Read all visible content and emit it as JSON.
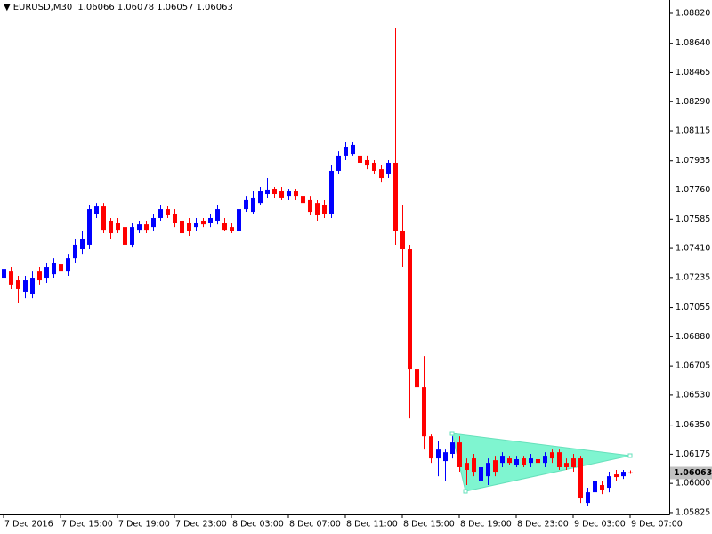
{
  "chart_data": {
    "type": "candlestick",
    "title": "EURUSD,M30",
    "x": [
      "7 Dec 2016",
      null,
      null,
      null,
      null,
      null,
      null,
      null,
      "7 Dec 15:00",
      null,
      null,
      null,
      null,
      null,
      null,
      null,
      "7 Dec 19:00",
      null,
      null,
      null,
      null,
      null,
      null,
      null,
      "7 Dec 23:00",
      null,
      null,
      null,
      null,
      null,
      null,
      null,
      "8 Dec 03:00",
      null,
      null,
      null,
      null,
      null,
      null,
      null,
      "8 Dec 07:00",
      null,
      null,
      null,
      null,
      null,
      null,
      null,
      "8 Dec 11:00",
      null,
      null,
      null,
      null,
      null,
      null,
      null,
      "8 Dec 15:00",
      null,
      null,
      null,
      null,
      null,
      null,
      null,
      "8 Dec 19:00",
      null,
      null,
      null,
      null,
      null,
      null,
      null,
      "8 Dec 23:00",
      null,
      null,
      null,
      null,
      null,
      null,
      null,
      "9 Dec 03:00",
      null,
      null,
      null,
      null,
      null,
      null,
      null,
      "9 Dec 07:00"
    ],
    "open": [
      1.07234,
      1.07271,
      1.07218,
      1.07149,
      1.07138,
      1.07271,
      1.07234,
      1.07255,
      1.07314,
      1.07271,
      1.07351,
      1.07405,
      1.07432,
      1.07618,
      1.07661,
      1.07576,
      1.07565,
      1.07538,
      1.07432,
      1.07522,
      1.07554,
      1.07538,
      1.07592,
      1.07645,
      1.07618,
      1.07576,
      1.07565,
      1.07538,
      1.07576,
      1.07565,
      1.07576,
      1.07565,
      1.07538,
      1.07512,
      1.07645,
      1.07629,
      1.07682,
      1.07736,
      1.07768,
      1.07752,
      1.07725,
      1.07752,
      1.07725,
      1.07699,
      1.07682,
      1.07672,
      1.07618,
      1.07875,
      1.07966,
      1.07976,
      1.07966,
      1.07939,
      1.07923,
      1.07885,
      1.07859,
      1.07923,
      1.07512,
      1.07405,
      1.06684,
      1.06577,
      1.06283,
      1.0615,
      1.06134,
      1.06177,
      1.06246,
      1.06123,
      1.0615,
      1.06016,
      1.06043,
      1.06139,
      1.06123,
      1.0615,
      1.06113,
      1.0615,
      1.06123,
      1.06145,
      1.06123,
      1.06187,
      1.06187,
      1.06123,
      1.0615,
      1.0615,
      1.05883,
      1.05947,
      1.0599,
      1.05974,
      1.06054,
      1.06043,
      1.06066
    ],
    "high": [
      1.07314,
      1.07298,
      1.07245,
      1.07245,
      1.07271,
      1.07298,
      1.07325,
      1.07351,
      1.07351,
      1.07378,
      1.07469,
      1.07512,
      1.07672,
      1.07682,
      1.07682,
      1.07592,
      1.07592,
      1.07565,
      1.07565,
      1.07576,
      1.07576,
      1.07618,
      1.07672,
      1.07661,
      1.07645,
      1.07592,
      1.07592,
      1.07592,
      1.07592,
      1.07618,
      1.07672,
      1.07592,
      1.07565,
      1.07672,
      1.07725,
      1.07752,
      1.07779,
      1.07832,
      1.07779,
      1.07779,
      1.07768,
      1.07768,
      1.07752,
      1.07725,
      1.07699,
      1.07699,
      1.07912,
      1.07992,
      1.08046,
      1.08046,
      1.08019,
      1.07966,
      1.07939,
      1.07912,
      1.07939,
      1.08729,
      1.07672,
      1.07432,
      1.06764,
      1.06764,
      1.06294,
      1.06257,
      1.06203,
      1.06283,
      1.06283,
      1.0615,
      1.06177,
      1.06166,
      1.0615,
      1.06166,
      1.06187,
      1.06166,
      1.06166,
      1.06166,
      1.06177,
      1.06166,
      1.06187,
      1.06203,
      1.06203,
      1.0615,
      1.06177,
      1.06166,
      1.05974,
      1.06043,
      1.06016,
      1.0607,
      1.06081,
      1.06081,
      1.06078
    ],
    "low": [
      1.07202,
      1.07165,
      1.07084,
      1.07111,
      1.07111,
      1.07192,
      1.07202,
      1.07234,
      1.07245,
      1.07245,
      1.07325,
      1.07378,
      1.07405,
      1.07592,
      1.07501,
      1.07469,
      1.07501,
      1.07405,
      1.07415,
      1.07501,
      1.07501,
      1.07512,
      1.07576,
      1.07592,
      1.07538,
      1.07485,
      1.07485,
      1.07512,
      1.07538,
      1.07538,
      1.07554,
      1.07512,
      1.07501,
      1.07501,
      1.07629,
      1.07618,
      1.07672,
      1.07715,
      1.07715,
      1.07699,
      1.07699,
      1.07699,
      1.07661,
      1.07608,
      1.07576,
      1.07592,
      1.07592,
      1.07859,
      1.07939,
      1.07966,
      1.07912,
      1.07885,
      1.07859,
      1.07805,
      1.07832,
      1.07432,
      1.07298,
      1.0639,
      1.0639,
      1.06203,
      1.06123,
      1.06043,
      1.06016,
      1.0615,
      1.0607,
      1.0599,
      1.06043,
      1.05974,
      1.0599,
      1.06043,
      1.06097,
      1.06113,
      1.06097,
      1.06097,
      1.06097,
      1.06097,
      1.06097,
      1.06123,
      1.06081,
      1.06081,
      1.0607,
      1.05883,
      1.05867,
      1.05936,
      1.05936,
      1.05947,
      1.06016,
      1.06027,
      1.06057
    ],
    "close": [
      1.07287,
      1.07192,
      1.07165,
      1.07218,
      1.07234,
      1.07218,
      1.07298,
      1.07325,
      1.07271,
      1.07351,
      1.07432,
      1.07469,
      1.07645,
      1.07661,
      1.07522,
      1.07501,
      1.07522,
      1.07432,
      1.07538,
      1.07554,
      1.07522,
      1.07592,
      1.07645,
      1.07608,
      1.07565,
      1.07501,
      1.07512,
      1.07565,
      1.07554,
      1.07592,
      1.07645,
      1.07522,
      1.07512,
      1.07645,
      1.07699,
      1.07715,
      1.07752,
      1.07763,
      1.07736,
      1.07715,
      1.07752,
      1.07725,
      1.07682,
      1.07629,
      1.07608,
      1.07618,
      1.07875,
      1.07966,
      1.08019,
      1.0803,
      1.07923,
      1.07912,
      1.07875,
      1.07832,
      1.07923,
      1.07512,
      1.07405,
      1.06684,
      1.06577,
      1.06283,
      1.0615,
      1.06203,
      1.06187,
      1.06246,
      1.06097,
      1.06081,
      1.0607,
      1.06097,
      1.06123,
      1.0607,
      1.06166,
      1.06123,
      1.06145,
      1.06113,
      1.0615,
      1.06123,
      1.06166,
      1.0615,
      1.06097,
      1.06097,
      1.06097,
      1.0591,
      1.05947,
      1.06016,
      1.05963,
      1.06043,
      1.06038,
      1.0607,
      1.06063
    ],
    "colors": {
      "up": "#0000ff",
      "down": "#ff0000",
      "price_line": "#c0c0c0"
    },
    "ylim": [
      1.05814,
      1.089
    ],
    "yticks": [
      {
        "value": 1.0882,
        "label": "1.08820"
      },
      {
        "value": 1.0864,
        "label": "1.08640"
      },
      1.08465,
      {
        "value": 1.0829,
        "label": "1.08290"
      },
      1.08115,
      1.07935,
      {
        "value": 1.0776,
        "label": "1.07760"
      },
      1.07585,
      {
        "value": 1.0741,
        "label": "1.07410"
      },
      1.07235,
      1.07055,
      {
        "value": 1.0688,
        "label": "1.06880"
      },
      1.06705,
      {
        "value": 1.0653,
        "label": "1.06530"
      },
      {
        "value": 1.0635,
        "label": "1.06350"
      },
      1.06175,
      {
        "value": 1.06,
        "label": "1.06000"
      },
      1.05825
    ]
  }
}
